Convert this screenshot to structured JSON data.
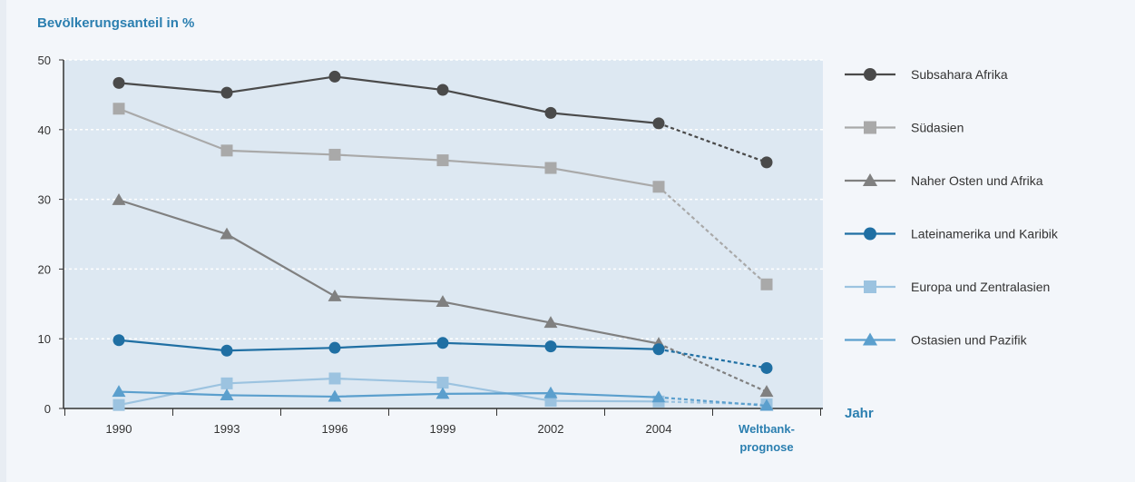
{
  "chart_data": {
    "type": "line",
    "ylabel": "Bevölkerungsanteil in %",
    "xlabel": "Jahr",
    "categories": [
      "1990",
      "1993",
      "1996",
      "1999",
      "2002",
      "2004",
      "Weltbank-\nprognose"
    ],
    "ylim": [
      0,
      50
    ],
    "yticks": [
      0,
      10,
      20,
      30,
      40,
      50
    ],
    "grid": true,
    "legend_position": "right",
    "series": [
      {
        "name": "Subsahara Afrika",
        "values": [
          46.7,
          45.3,
          47.6,
          45.7,
          42.4,
          40.9,
          35.3
        ],
        "color": "#4a4a4a",
        "marker": "circle",
        "forecast_from": 5
      },
      {
        "name": "Südasien",
        "values": [
          43.0,
          37.0,
          36.4,
          35.6,
          34.5,
          31.8,
          17.8
        ],
        "color": "#a9a9a9",
        "marker": "square",
        "forecast_from": 5
      },
      {
        "name": "Naher Osten und Afrika",
        "values": [
          29.9,
          25.0,
          16.1,
          15.3,
          12.3,
          9.3,
          2.4
        ],
        "color": "#808080",
        "marker": "triangle",
        "forecast_from": 5
      },
      {
        "name": "Lateinamerika und Karibik",
        "values": [
          9.8,
          8.3,
          8.7,
          9.4,
          8.9,
          8.5,
          5.8
        ],
        "color": "#1f6fa3",
        "marker": "circle",
        "forecast_from": 5
      },
      {
        "name": "Europa und Zentralasien",
        "values": [
          0.5,
          3.6,
          4.3,
          3.7,
          1.1,
          1.0,
          0.6
        ],
        "color": "#9cc3e0",
        "marker": "square",
        "forecast_from": 5
      },
      {
        "name": "Ostasien und Pazifik",
        "values": [
          2.4,
          1.9,
          1.7,
          2.1,
          2.2,
          1.6,
          0.4
        ],
        "color": "#5b9fcd",
        "marker": "triangle",
        "forecast_from": 5
      }
    ]
  }
}
